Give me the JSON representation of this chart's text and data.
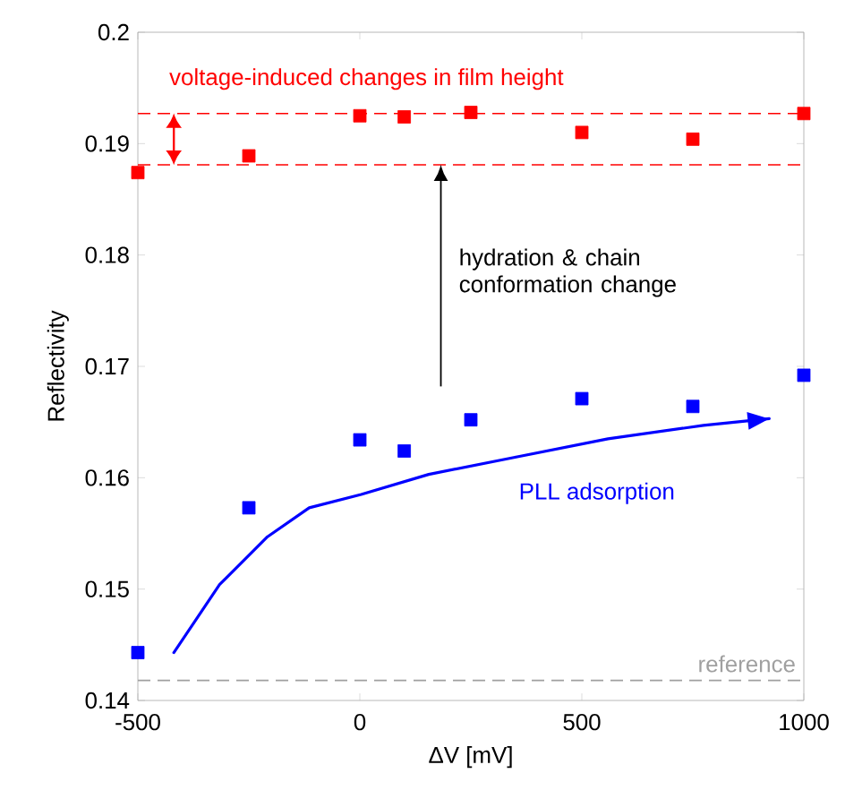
{
  "chart_data": {
    "type": "scatter",
    "xlabel": "ΔV [mV]",
    "ylabel": "Reflectivity",
    "x": [
      -500,
      -250,
      0,
      100,
      250,
      500,
      750,
      1000
    ],
    "series": [
      {
        "color": "#ff0000",
        "values": [
          0.1874,
          0.1889,
          0.1925,
          0.1924,
          0.1928,
          0.191,
          0.1904,
          0.1927
        ]
      },
      {
        "color": "#0000ff",
        "values": [
          0.1443,
          0.1573,
          0.1634,
          0.1624,
          0.1652,
          0.1671,
          0.1664,
          0.1692
        ]
      },
      {
        "type": "line",
        "marker": "none",
        "color": "#0000ff",
        "x": [
          -419,
          -316,
          -208,
          -114,
          3,
          155,
          357,
          559,
          774,
          922
        ],
        "values": [
          0.1443,
          0.1504,
          0.1547,
          0.1573,
          0.1585,
          0.1603,
          0.1619,
          0.1635,
          0.1647,
          0.1653
        ]
      }
    ],
    "xlim": [
      -500,
      1000
    ],
    "xticks": [
      -500,
      0,
      500,
      1000
    ],
    "ylim": [
      0.14,
      0.2
    ],
    "yticks": [
      0.14,
      0.15,
      0.16,
      0.17,
      0.18,
      0.19,
      0.2
    ],
    "marker": "square",
    "grid": false,
    "ref_lines": [
      {
        "axis": "y",
        "value": 0.1927,
        "color": "#ff0000",
        "line_style": "dashed"
      },
      {
        "axis": "y",
        "value": 0.1881,
        "color": "#ff0000",
        "line_style": "dashed"
      },
      {
        "axis": "y",
        "value": 0.1418,
        "color": "#a0a0a0",
        "line_style": "dashed",
        "label": "reference"
      }
    ],
    "annotations": [
      "voltage-induced changes in film height",
      "hydration & chain conformation change",
      "PLL adsorption"
    ]
  }
}
